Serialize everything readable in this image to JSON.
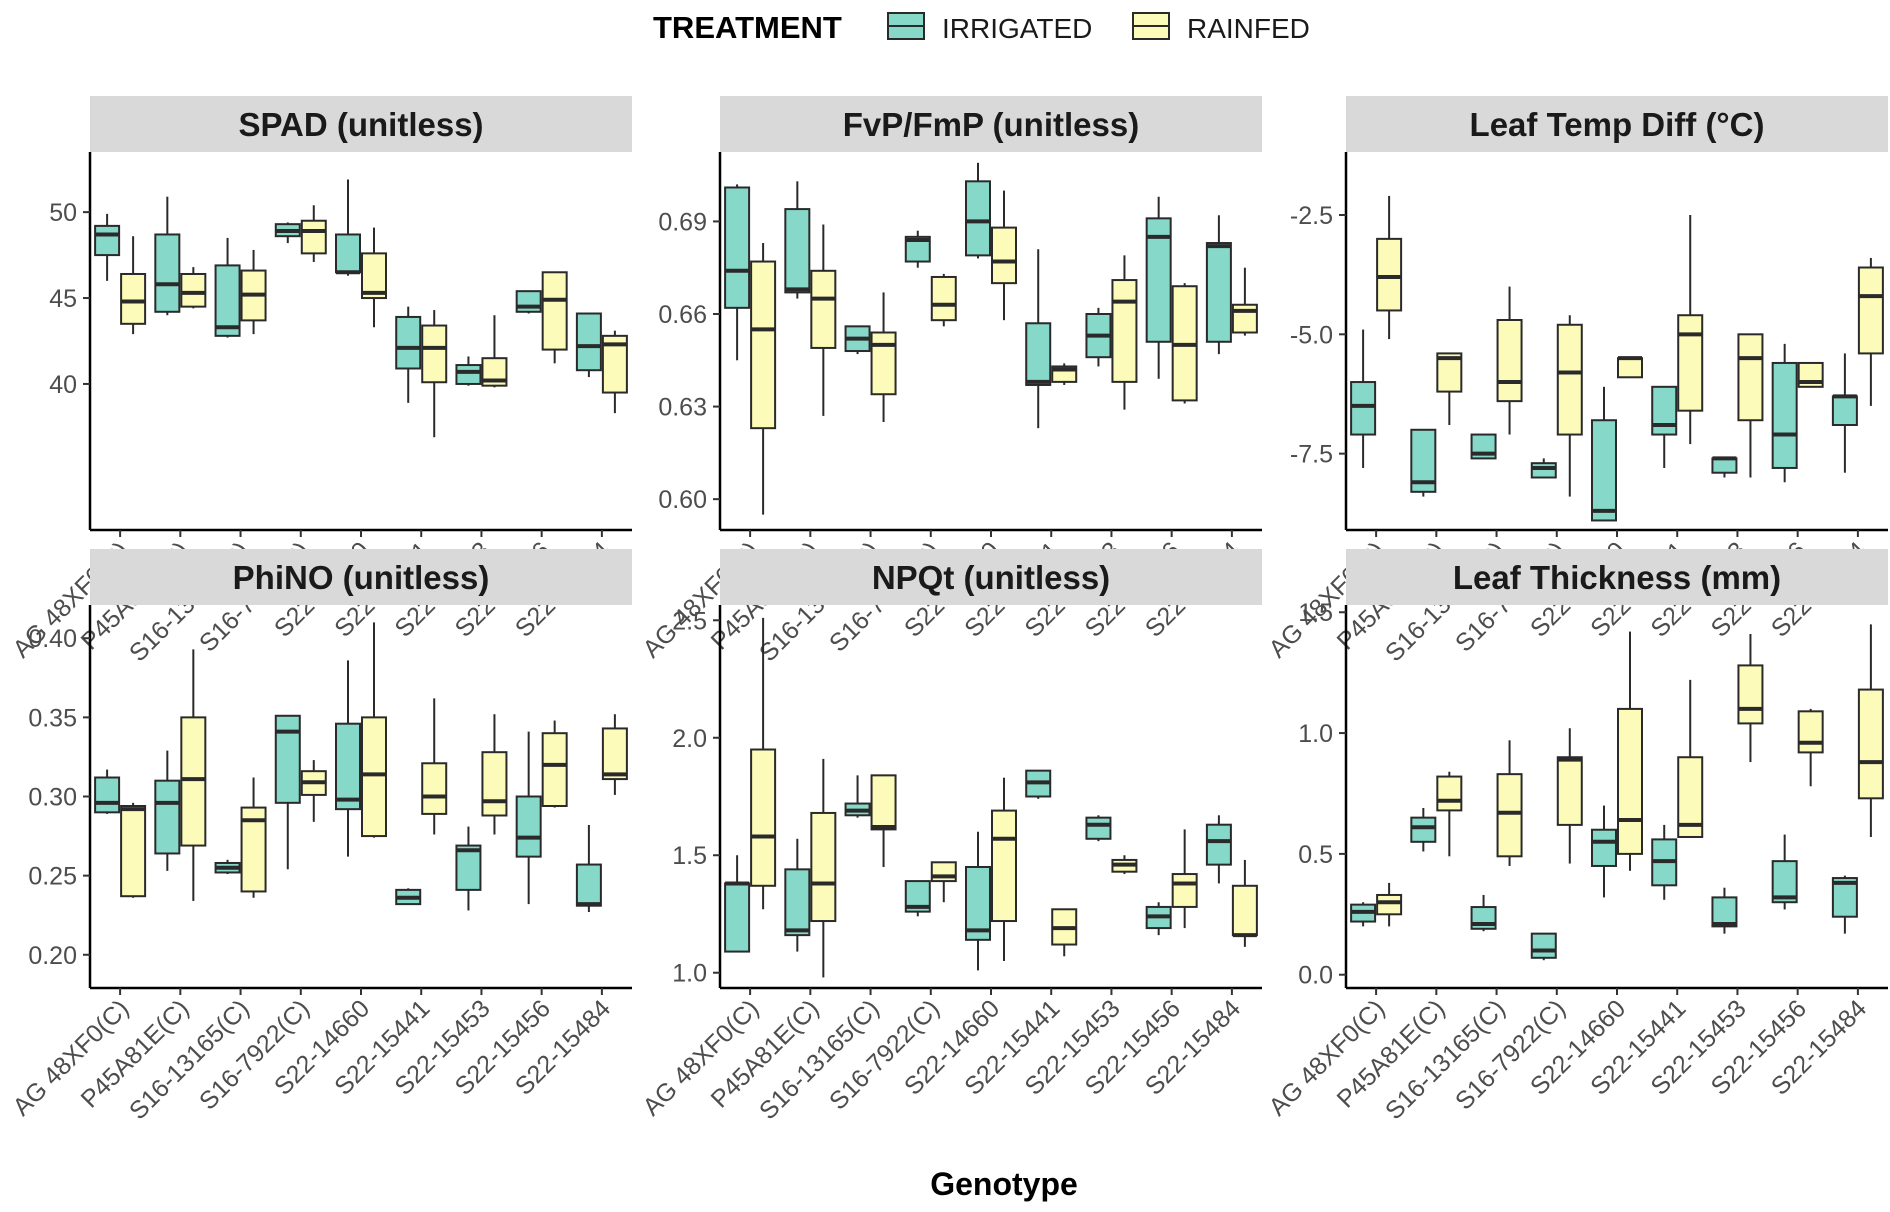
{
  "legend": {
    "title": "TREATMENT",
    "items": [
      {
        "label": "IRRIGATED",
        "color": "#86d8c8"
      },
      {
        "label": "RAINFED",
        "color": "#fcfbb9"
      }
    ]
  },
  "x_axis_title": "Genotype",
  "genotypes": [
    "AG 48XF0(C)",
    "P45A81E(C)",
    "S16-13165(C)",
    "S16-7922(C)",
    "S22-14660",
    "S22-15441",
    "S22-15453",
    "S22-15456",
    "S22-15484"
  ],
  "chart_data": [
    {
      "type": "boxplot",
      "title": "SPAD (unitless)",
      "xlabel": "Genotype",
      "ylim": [
        31.5,
        53.5
      ],
      "yticks": [
        40,
        45,
        50
      ],
      "tick_labels": [
        "40",
        "45",
        "50"
      ],
      "series": [
        {
          "name": "IRRIGATED",
          "boxes": [
            [
              46,
              47.5,
              48.7,
              49.2,
              49.9
            ],
            [
              44,
              44.2,
              45.8,
              48.7,
              50.9
            ],
            [
              42.7,
              42.8,
              43.3,
              46.9,
              48.5
            ],
            [
              48.2,
              48.6,
              48.9,
              49.3,
              49.4
            ],
            [
              46.3,
              46.5,
              46.5,
              48.7,
              51.9
            ],
            [
              38.9,
              40.9,
              42.1,
              43.9,
              44.5
            ],
            [
              39.9,
              40.0,
              40.7,
              41.1,
              41.6
            ],
            [
              44.1,
              44.2,
              44.5,
              45.4,
              45.4
            ],
            [
              40.4,
              40.8,
              42.2,
              44.1,
              44.1
            ]
          ]
        },
        {
          "name": "RAINFED",
          "boxes": [
            [
              42.9,
              43.5,
              44.8,
              46.4,
              48.6
            ],
            [
              44.4,
              44.5,
              45.3,
              46.4,
              46.8
            ],
            [
              42.9,
              43.7,
              45.2,
              46.6,
              47.8
            ],
            [
              47.1,
              47.6,
              48.9,
              49.5,
              50.4
            ],
            [
              43.3,
              45,
              45.3,
              47.6,
              49.1
            ],
            [
              36.9,
              40.1,
              42.1,
              43.4,
              44.3
            ],
            [
              39.8,
              39.9,
              40.2,
              41.5,
              44
            ],
            [
              41.2,
              42,
              44.9,
              46.5,
              46.5
            ],
            [
              38.3,
              39.5,
              42.3,
              42.8,
              43.1
            ]
          ]
        }
      ]
    },
    {
      "type": "boxplot",
      "title": "FvP/FmP (unitless)",
      "xlabel": "Genotype",
      "ylim": [
        0.59,
        0.7125
      ],
      "yticks": [
        0.6,
        0.63,
        0.66,
        0.69
      ],
      "tick_labels": [
        "0.60",
        "0.63",
        "0.66",
        "0.69"
      ],
      "series": [
        {
          "name": "IRRIGATED",
          "boxes": [
            [
              0.645,
              0.662,
              0.674,
              0.701,
              0.702
            ],
            [
              0.665,
              0.667,
              0.668,
              0.694,
              0.703
            ],
            [
              0.647,
              0.648,
              0.652,
              0.656,
              0.656
            ],
            [
              0.675,
              0.677,
              0.684,
              0.685,
              0.687
            ],
            [
              0.678,
              0.679,
              0.69,
              0.703,
              0.709
            ],
            [
              0.623,
              0.637,
              0.638,
              0.657,
              0.681
            ],
            [
              0.643,
              0.646,
              0.653,
              0.66,
              0.662
            ],
            [
              0.639,
              0.651,
              0.685,
              0.691,
              0.698
            ],
            [
              0.647,
              0.651,
              0.682,
              0.683,
              0.692
            ]
          ]
        },
        {
          "name": "RAINFED",
          "boxes": [
            [
              0.595,
              0.623,
              0.655,
              0.677,
              0.683
            ],
            [
              0.627,
              0.649,
              0.665,
              0.674,
              0.689
            ],
            [
              0.625,
              0.634,
              0.65,
              0.654,
              0.667
            ],
            [
              0.656,
              0.658,
              0.663,
              0.672,
              0.673
            ],
            [
              0.658,
              0.67,
              0.677,
              0.688,
              0.7
            ],
            [
              0.637,
              0.638,
              0.642,
              0.643,
              0.644
            ],
            [
              0.629,
              0.638,
              0.664,
              0.671,
              0.679
            ],
            [
              0.631,
              0.632,
              0.65,
              0.669,
              0.67
            ],
            [
              0.653,
              0.654,
              0.661,
              0.663,
              0.675
            ]
          ]
        }
      ]
    },
    {
      "type": "boxplot",
      "title": "Leaf Temp Diff (°C)",
      "xlabel": "Genotype",
      "ylim": [
        -9.1,
        -1.18
      ],
      "yticks": [
        -7.5,
        -5,
        -2.5
      ],
      "tick_labels": [
        "-7.5",
        "-5.0",
        "-2.5"
      ],
      "series": [
        {
          "name": "IRRIGATED",
          "boxes": [
            [
              -7.8,
              -7.1,
              -6.5,
              -6,
              -4.9
            ],
            [
              -8.4,
              -8.3,
              -8.1,
              -7,
              -7
            ],
            [
              -7.6,
              -7.6,
              -7.5,
              -7.1,
              -7.1
            ],
            [
              -8,
              -8,
              -7.8,
              -7.7,
              -7.6
            ],
            [
              -8.9,
              -8.9,
              -8.7,
              -6.8,
              -6.1
            ],
            [
              -7.8,
              -7.1,
              -6.9,
              -6.1,
              -6.1
            ],
            [
              -8,
              -7.9,
              -7.6,
              -7.6,
              -7.6
            ],
            [
              -8.1,
              -7.8,
              -7.1,
              -5.6,
              -5.2
            ],
            [
              -7.9,
              -6.9,
              -6.3,
              -6.3,
              -5.4
            ]
          ]
        },
        {
          "name": "RAINFED",
          "boxes": [
            [
              -5.1,
              -4.5,
              -3.8,
              -3,
              -2.1
            ],
            [
              -6.9,
              -6.2,
              -5.5,
              -5.4,
              -5.4
            ],
            [
              -7.1,
              -6.4,
              -6,
              -4.7,
              -4
            ],
            [
              -8.4,
              -7.1,
              -5.8,
              -4.8,
              -4.6
            ],
            [
              -5.9,
              -5.9,
              -5.5,
              -5.5,
              -5.5
            ],
            [
              -7.3,
              -6.6,
              -5,
              -4.6,
              -2.5
            ],
            [
              -8,
              -6.8,
              -5.5,
              -5,
              -5
            ],
            [
              -6,
              -6.1,
              -6,
              -5.6,
              -5.6
            ],
            [
              -6.5,
              -5.4,
              -4.2,
              -3.6,
              -3.4
            ]
          ]
        }
      ]
    },
    {
      "type": "boxplot",
      "title": "PhiNO (unitless)",
      "xlabel": "Genotype",
      "ylim": [
        0.179,
        0.421
      ],
      "yticks": [
        0.2,
        0.25,
        0.3,
        0.35,
        0.4
      ],
      "tick_labels": [
        "0.20",
        "0.25",
        "0.30",
        "0.35",
        "0.40"
      ],
      "series": [
        {
          "name": "IRRIGATED",
          "boxes": [
            [
              0.289,
              0.29,
              0.296,
              0.312,
              0.317
            ],
            [
              0.253,
              0.264,
              0.296,
              0.31,
              0.329
            ],
            [
              0.251,
              0.252,
              0.255,
              0.258,
              0.26
            ],
            [
              0.254,
              0.296,
              0.341,
              0.351,
              0.351
            ],
            [
              0.262,
              0.292,
              0.298,
              0.346,
              0.386
            ],
            [
              0.232,
              0.232,
              0.236,
              0.241,
              0.242
            ],
            [
              0.228,
              0.241,
              0.266,
              0.269,
              0.281
            ],
            [
              0.232,
              0.262,
              0.274,
              0.3,
              0.341
            ],
            [
              0.227,
              0.231,
              0.232,
              0.257,
              0.282
            ]
          ]
        },
        {
          "name": "RAINFED",
          "boxes": [
            [
              0.236,
              0.237,
              0.292,
              0.294,
              0.296
            ],
            [
              0.234,
              0.269,
              0.311,
              0.35,
              0.393
            ],
            [
              0.236,
              0.24,
              0.285,
              0.293,
              0.312
            ],
            [
              0.284,
              0.301,
              0.309,
              0.316,
              0.323
            ],
            [
              0.274,
              0.275,
              0.314,
              0.35,
              0.41
            ],
            [
              0.276,
              0.289,
              0.3,
              0.321,
              0.362
            ],
            [
              0.276,
              0.288,
              0.297,
              0.328,
              0.352
            ],
            [
              0.293,
              0.294,
              0.32,
              0.34,
              0.348
            ],
            [
              0.301,
              0.311,
              0.314,
              0.343,
              0.352
            ]
          ]
        }
      ]
    },
    {
      "type": "boxplot",
      "title": "NPQt (unitless)",
      "xlabel": "Genotype",
      "ylim": [
        0.935,
        2.565
      ],
      "yticks": [
        1.0,
        1.5,
        2.0,
        2.5
      ],
      "tick_labels": [
        "1.0",
        "1.5",
        "2.0",
        "2.5"
      ],
      "series": [
        {
          "name": "IRRIGATED",
          "boxes": [
            [
              1.09,
              1.09,
              1.38,
              1.38,
              1.5
            ],
            [
              1.09,
              1.16,
              1.18,
              1.44,
              1.57
            ],
            [
              1.66,
              1.67,
              1.69,
              1.72,
              1.84
            ],
            [
              1.24,
              1.26,
              1.28,
              1.39,
              1.39
            ],
            [
              1.01,
              1.14,
              1.18,
              1.45,
              1.6
            ],
            [
              1.74,
              1.75,
              1.81,
              1.86,
              1.86
            ],
            [
              1.56,
              1.57,
              1.63,
              1.66,
              1.67
            ],
            [
              1.16,
              1.19,
              1.24,
              1.28,
              1.3
            ],
            [
              1.38,
              1.46,
              1.56,
              1.63,
              1.67
            ]
          ]
        },
        {
          "name": "RAINFED",
          "boxes": [
            [
              1.27,
              1.37,
              1.58,
              1.95,
              2.51
            ],
            [
              0.98,
              1.22,
              1.38,
              1.68,
              1.91
            ],
            [
              1.45,
              1.61,
              1.62,
              1.84,
              1.84
            ],
            [
              1.3,
              1.39,
              1.41,
              1.47,
              1.47
            ],
            [
              1.05,
              1.22,
              1.57,
              1.69,
              1.83
            ],
            [
              1.07,
              1.12,
              1.19,
              1.27,
              1.27
            ],
            [
              1.42,
              1.43,
              1.46,
              1.48,
              1.5
            ],
            [
              1.19,
              1.28,
              1.38,
              1.42,
              1.61
            ],
            [
              1.11,
              1.16,
              1.16,
              1.37,
              1.48
            ]
          ]
        }
      ]
    },
    {
      "type": "boxplot",
      "title": "Leaf Thickness (mm)",
      "xlabel": "Genotype",
      "ylim": [
        -0.055,
        1.53
      ],
      "yticks": [
        0.0,
        0.5,
        1.0,
        1.5
      ],
      "tick_labels": [
        "0.0",
        "0.5",
        "1.0",
        "1.5"
      ],
      "series": [
        {
          "name": "IRRIGATED",
          "boxes": [
            [
              0.2,
              0.22,
              0.26,
              0.29,
              0.3
            ],
            [
              0.51,
              0.55,
              0.61,
              0.65,
              0.69
            ],
            [
              0.18,
              0.19,
              0.21,
              0.28,
              0.33
            ],
            [
              0.06,
              0.07,
              0.1,
              0.17,
              0.17
            ],
            [
              0.32,
              0.45,
              0.55,
              0.6,
              0.7
            ],
            [
              0.31,
              0.37,
              0.47,
              0.56,
              0.62
            ],
            [
              0.17,
              0.2,
              0.21,
              0.32,
              0.36
            ],
            [
              0.27,
              0.3,
              0.32,
              0.47,
              0.58
            ],
            [
              0.17,
              0.24,
              0.38,
              0.4,
              0.41
            ]
          ]
        },
        {
          "name": "RAINFED",
          "boxes": [
            [
              0.2,
              0.25,
              0.3,
              0.33,
              0.38
            ],
            [
              0.49,
              0.68,
              0.72,
              0.82,
              0.84
            ],
            [
              0.45,
              0.49,
              0.67,
              0.83,
              0.97
            ],
            [
              0.46,
              0.62,
              0.89,
              0.9,
              1.02
            ],
            [
              0.43,
              0.5,
              0.64,
              1.1,
              1.42
            ],
            [
              0.57,
              0.57,
              0.62,
              0.9,
              1.22
            ],
            [
              0.88,
              1.04,
              1.1,
              1.28,
              1.41
            ],
            [
              0.78,
              0.92,
              0.96,
              1.09,
              1.1
            ],
            [
              0.57,
              0.73,
              0.88,
              1.18,
              1.45
            ]
          ]
        }
      ]
    }
  ]
}
